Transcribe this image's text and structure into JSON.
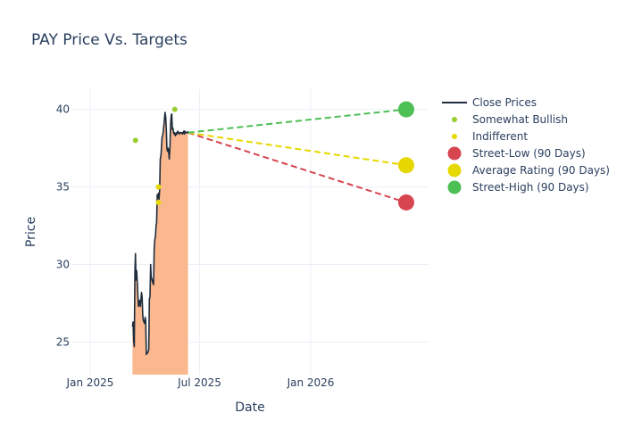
{
  "chart_data": {
    "type": "line",
    "title": "PAY Price Vs. Targets",
    "xlabel": "Date",
    "ylabel": "Price",
    "x_ticks": [
      "Jan 2025",
      "Jul 2025",
      "Jan 2026"
    ],
    "y_ticks": [
      25,
      30,
      35,
      40
    ],
    "ylim": [
      22.9,
      41.3
    ],
    "xlim": [
      "2024-12-01",
      "2026-07-15"
    ],
    "grid": true,
    "legend_position": "right",
    "series": [
      {
        "name": "Close Prices",
        "type": "line",
        "color": "#1f2d3d",
        "fill_color": "#fbb88f",
        "x": [
          "2025-03-12",
          "2025-03-13",
          "2025-03-14",
          "2025-03-15",
          "2025-03-16",
          "2025-03-17",
          "2025-03-18",
          "2025-03-19",
          "2025-03-20",
          "2025-03-21",
          "2025-03-22",
          "2025-03-23",
          "2025-03-24",
          "2025-03-25",
          "2025-03-26",
          "2025-03-27",
          "2025-03-28",
          "2025-03-29",
          "2025-03-30",
          "2025-03-31",
          "2025-04-01",
          "2025-04-02",
          "2025-04-03",
          "2025-04-04",
          "2025-04-05",
          "2025-04-06",
          "2025-04-07",
          "2025-04-08",
          "2025-04-09",
          "2025-04-10",
          "2025-04-11",
          "2025-04-12",
          "2025-04-13",
          "2025-04-14",
          "2025-04-15",
          "2025-04-16",
          "2025-04-17",
          "2025-04-18",
          "2025-04-19",
          "2025-04-20",
          "2025-04-21",
          "2025-04-22",
          "2025-04-23",
          "2025-04-24",
          "2025-04-25",
          "2025-04-26",
          "2025-04-27",
          "2025-04-28",
          "2025-04-29",
          "2025-04-30",
          "2025-05-01",
          "2025-05-02",
          "2025-05-03",
          "2025-05-04",
          "2025-05-05",
          "2025-05-06",
          "2025-05-07",
          "2025-05-08",
          "2025-05-09",
          "2025-05-10",
          "2025-05-11",
          "2025-05-12",
          "2025-05-13",
          "2025-05-14",
          "2025-05-15",
          "2025-05-16",
          "2025-05-17",
          "2025-05-18",
          "2025-05-19",
          "2025-05-20",
          "2025-05-21",
          "2025-05-22",
          "2025-05-23",
          "2025-05-24",
          "2025-05-25",
          "2025-05-26",
          "2025-05-27",
          "2025-05-28",
          "2025-05-29",
          "2025-05-30",
          "2025-05-31",
          "2025-06-01",
          "2025-06-02",
          "2025-06-03",
          "2025-06-04",
          "2025-06-05",
          "2025-06-06",
          "2025-06-07",
          "2025-06-08",
          "2025-06-09",
          "2025-06-10",
          "2025-06-11",
          "2025-06-12"
        ],
        "y": [
          26.0,
          26.3,
          25.1,
          24.7,
          29.5,
          30.7,
          29.0,
          29.6,
          28.8,
          27.9,
          27.3,
          27.7,
          27.6,
          27.3,
          27.7,
          28.2,
          27.9,
          26.7,
          26.4,
          26.3,
          26.2,
          26.6,
          26.4,
          24.2,
          24.3,
          24.3,
          24.4,
          24.5,
          27.8,
          27.9,
          30.0,
          29.2,
          29.1,
          28.9,
          28.8,
          28.7,
          31.0,
          31.6,
          31.8,
          32.5,
          32.7,
          34.5,
          34.3,
          34.6,
          34.2,
          34.8,
          36.8,
          37.0,
          37.5,
          38.2,
          38.3,
          38.6,
          39.0,
          39.4,
          39.8,
          39.5,
          38.7,
          37.5,
          37.3,
          37.5,
          37.2,
          36.8,
          37.5,
          38.9,
          39.6,
          39.7,
          38.7,
          38.8,
          38.5,
          38.4,
          38.5,
          38.3,
          38.4,
          38.5,
          38.4,
          38.6,
          38.5,
          38.5,
          38.4,
          38.5,
          38.5,
          38.5,
          38.5,
          38.4,
          38.5,
          38.6,
          38.4,
          38.6,
          38.5,
          38.5,
          38.5,
          38.5,
          38.6
        ]
      },
      {
        "name": "Somewhat Bullish",
        "type": "scatter",
        "color": "#9acd32",
        "points": [
          {
            "x": "2025-03-17",
            "y": 38.0
          },
          {
            "x": "2025-05-21",
            "y": 40.0
          }
        ]
      },
      {
        "name": "Indifferent",
        "type": "scatter",
        "color": "#e6d800",
        "points": [
          {
            "x": "2025-04-24",
            "y": 35.0
          },
          {
            "x": "2025-04-24",
            "y": 34.0
          }
        ]
      },
      {
        "name": "Street-Low (90 Days)",
        "type": "target",
        "color": "#d64550",
        "start": {
          "x": "2025-06-12",
          "y": 38.5
        },
        "end": {
          "x": "2026-06-08",
          "y": 34.0
        }
      },
      {
        "name": "Average Rating (90 Days)",
        "type": "target",
        "color": "#e6d800",
        "start": {
          "x": "2025-06-12",
          "y": 38.5
        },
        "end": {
          "x": "2026-06-08",
          "y": 36.4
        }
      },
      {
        "name": "Street-High (90 Days)",
        "type": "target",
        "color": "#4cbf55",
        "start": {
          "x": "2025-06-12",
          "y": 38.5
        },
        "end": {
          "x": "2026-06-08",
          "y": 40.0
        }
      }
    ]
  }
}
